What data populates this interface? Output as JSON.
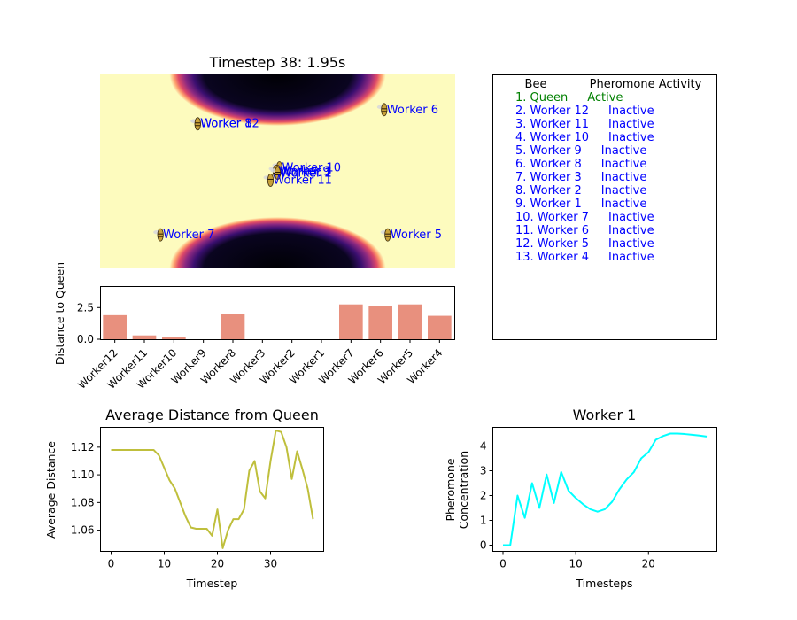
{
  "colors": {
    "field_bg": "#fdfbbe",
    "bar": "#e8907e",
    "avg_line": "#bfbf3c",
    "pher_line": "#00ffff",
    "queen_text": "#008000",
    "worker_text": "#0000ff"
  },
  "field": {
    "title": "Timestep 38: 1.95s",
    "bees": [
      {
        "label": "Worker 8",
        "x": 2.75,
        "y": 4.1
      },
      {
        "label": "Worker 12",
        "x": 2.75,
        "y": 4.1
      },
      {
        "label": "Worker 6",
        "x": 8.0,
        "y": 4.5
      },
      {
        "label": "Worker 10",
        "x": 5.05,
        "y": 2.85
      },
      {
        "label": "Worker 3",
        "x": 5.0,
        "y": 2.75
      },
      {
        "label": "Worker 2",
        "x": 5.0,
        "y": 2.7
      },
      {
        "label": "Worker 9",
        "x": 4.95,
        "y": 2.75
      },
      {
        "label": "Worker 1",
        "x": 5.0,
        "y": 2.7
      },
      {
        "label": "Worker 11",
        "x": 4.8,
        "y": 2.5
      },
      {
        "label": "Worker 7",
        "x": 1.7,
        "y": 0.95
      },
      {
        "label": "Worker 5",
        "x": 8.1,
        "y": 0.95
      }
    ]
  },
  "table": {
    "header_bee": "Bee",
    "header_activity": "Pheromone Activity",
    "rows": [
      {
        "bee": "1. Queen",
        "status": "Active",
        "queen": true
      },
      {
        "bee": "2. Worker 12",
        "status": "Inactive"
      },
      {
        "bee": "3. Worker 11",
        "status": "Inactive"
      },
      {
        "bee": "4. Worker 10",
        "status": "Inactive"
      },
      {
        "bee": "5. Worker 9",
        "status": "Inactive"
      },
      {
        "bee": "6. Worker 8",
        "status": "Inactive"
      },
      {
        "bee": "7. Worker 3",
        "status": "Inactive"
      },
      {
        "bee": "8. Worker 2",
        "status": "Inactive"
      },
      {
        "bee": "9. Worker 1",
        "status": "Inactive"
      },
      {
        "bee": "10. Worker 7",
        "status": "Inactive"
      },
      {
        "bee": "11. Worker 6",
        "status": "Inactive"
      },
      {
        "bee": "12. Worker 5",
        "status": "Inactive"
      },
      {
        "bee": "13. Worker 4",
        "status": "Inactive"
      }
    ]
  },
  "chart_data": [
    {
      "type": "bar",
      "ylabel": "Distance to Queen",
      "categories": [
        "Worker12",
        "Worker11",
        "Worker10",
        "Worker9",
        "Worker8",
        "Worker3",
        "Worker2",
        "Worker1",
        "Worker7",
        "Worker6",
        "Worker5",
        "Worker4"
      ],
      "values": [
        1.9,
        0.3,
        0.2,
        0.0,
        2.0,
        0.0,
        0.0,
        0.0,
        2.75,
        2.6,
        2.75,
        1.85
      ],
      "ylim": [
        0,
        4.2
      ],
      "yticks": [
        0.0,
        2.5
      ],
      "ytick_labels": [
        "0.0",
        "2.5"
      ]
    },
    {
      "type": "line",
      "title": "Average Distance from Queen",
      "xlabel": "Timestep",
      "ylabel": "Average Distance",
      "x": [
        0,
        1,
        2,
        3,
        4,
        5,
        6,
        7,
        8,
        9,
        10,
        11,
        12,
        13,
        14,
        15,
        16,
        17,
        18,
        19,
        20,
        21,
        22,
        23,
        24,
        25,
        26,
        27,
        28,
        29,
        30,
        31,
        32,
        33,
        34,
        35,
        36,
        37,
        38
      ],
      "y": [
        1.118,
        1.118,
        1.118,
        1.118,
        1.118,
        1.118,
        1.118,
        1.118,
        1.118,
        1.114,
        1.105,
        1.096,
        1.09,
        1.08,
        1.07,
        1.062,
        1.061,
        1.061,
        1.061,
        1.056,
        1.075,
        1.047,
        1.06,
        1.068,
        1.068,
        1.075,
        1.103,
        1.11,
        1.088,
        1.083,
        1.11,
        1.132,
        1.131,
        1.12,
        1.097,
        1.117,
        1.104,
        1.09,
        1.068
      ],
      "xlim": [
        -2,
        40
      ],
      "ylim": [
        1.0447,
        1.1343
      ],
      "xticks": [
        0,
        10,
        20,
        30
      ],
      "yticks": [
        1.06,
        1.08,
        1.1,
        1.12
      ],
      "ytick_labels": [
        "1.06",
        "1.08",
        "1.10",
        "1.12"
      ]
    },
    {
      "type": "line",
      "title": "Worker 1",
      "xlabel": "Timesteps",
      "ylabel_lines": [
        "Pheromone",
        "Concentration"
      ],
      "x": [
        0,
        1,
        2,
        3,
        4,
        5,
        6,
        7,
        8,
        9,
        10,
        11,
        12,
        13,
        14,
        15,
        16,
        17,
        18,
        19,
        20,
        21,
        22,
        23,
        24,
        25,
        26,
        27,
        28
      ],
      "y": [
        0,
        0,
        2.0,
        1.1,
        2.5,
        1.5,
        2.85,
        1.7,
        2.95,
        2.2,
        1.9,
        1.65,
        1.45,
        1.35,
        1.45,
        1.75,
        2.25,
        2.65,
        2.95,
        3.5,
        3.75,
        4.25,
        4.4,
        4.5,
        4.5,
        4.48,
        4.45,
        4.42,
        4.38
      ],
      "xlim": [
        -1.4,
        29.4
      ],
      "ylim": [
        -0.25,
        4.75
      ],
      "xticks": [
        0,
        10,
        20
      ],
      "yticks": [
        0,
        1,
        2,
        3,
        4
      ]
    }
  ]
}
